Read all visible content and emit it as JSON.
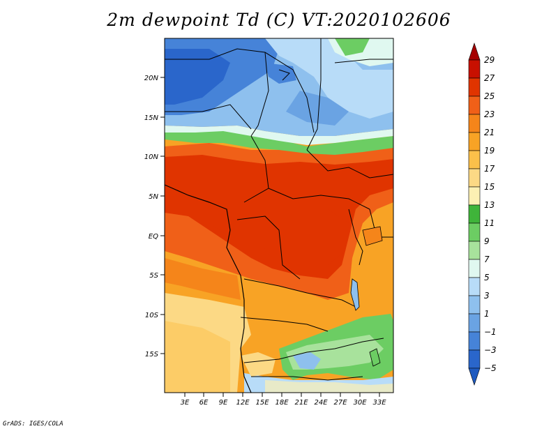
{
  "title": "2m dewpoint Td (C) VT:2020102606",
  "footer": "GrADS: IGES/COLA",
  "map": {
    "lat_labels": [
      "20N",
      "15N",
      "10N",
      "5N",
      "EQ",
      "5S",
      "10S",
      "15S"
    ],
    "lon_labels": [
      "3E",
      "6E",
      "9E",
      "12E",
      "15E",
      "18E",
      "21E",
      "24E",
      "27E",
      "30E",
      "33E"
    ]
  },
  "colorbar": {
    "labels": [
      "29",
      "27",
      "25",
      "23",
      "21",
      "19",
      "17",
      "15",
      "13",
      "11",
      "9",
      "7",
      "5",
      "3",
      "1",
      "−1",
      "−3",
      "−5"
    ],
    "colors_top_to_bottom": [
      "#a50000",
      "#c81000",
      "#e03400",
      "#f06018",
      "#f5851a",
      "#f8a325",
      "#fbc04a",
      "#fcd985",
      "#fcf0b3",
      "#3fb43a",
      "#6ccd63",
      "#a8e29c",
      "#e0f8f0",
      "#b8dcf8",
      "#8ec0ee",
      "#6aa3e3",
      "#4683d8",
      "#2a66cb",
      "#1e5ac0"
    ]
  },
  "colors": {
    "blue_deep": "#2a66cb",
    "blue_mid": "#6aa3e3",
    "blue_light": "#b8dcf8",
    "green": "#6ccd63",
    "yellow": "#fcd985",
    "orange": "#f8a325",
    "orange_dark": "#f06018",
    "red": "#e03400"
  }
}
